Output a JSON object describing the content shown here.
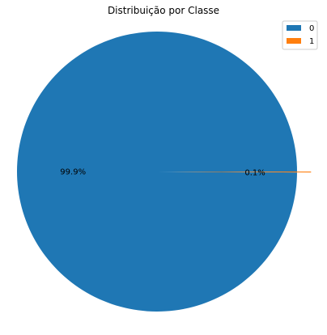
{
  "chart_data": {
    "type": "pie",
    "title": "Distribuição por Classe",
    "labels": [
      "0",
      "1"
    ],
    "values": [
      99.9,
      0.1
    ],
    "value_labels": [
      "99.9%",
      "0.1%"
    ],
    "colors": [
      "#1f77b4",
      "#ff7f0e"
    ],
    "explode": [
      0,
      0.1
    ],
    "startangle_deg": 0,
    "legend": {
      "position": "top-right",
      "entries": [
        "0",
        "1"
      ]
    }
  }
}
